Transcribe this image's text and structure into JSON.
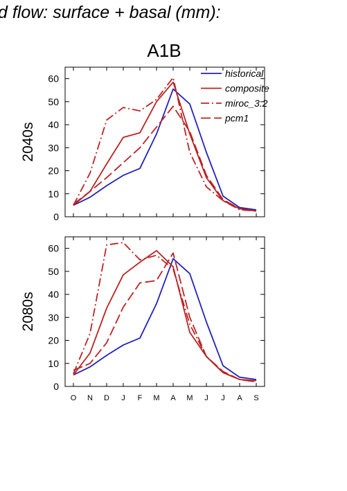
{
  "header": {
    "title": "d flow: surface + basal (mm):",
    "scenario": "A1B"
  },
  "chart_data": {
    "type": "line",
    "categories": [
      "O",
      "N",
      "D",
      "J",
      "F",
      "M",
      "A",
      "M",
      "J",
      "J",
      "A",
      "S"
    ],
    "ylim": [
      0,
      65
    ],
    "yticks": [
      0,
      10,
      20,
      30,
      40,
      50,
      60
    ],
    "legend_position": "top-right",
    "legend": [
      "historical",
      "composite",
      "miroc_3.2",
      "pcm1"
    ],
    "panels": [
      {
        "ylabel": "2040s",
        "series": [
          {
            "name": "historical",
            "color": "#2222bb",
            "dash": "solid",
            "values": [
              5,
              8.5,
              13.5,
              18,
              21,
              36,
              55.5,
              49,
              28,
              9,
              4,
              3
            ]
          },
          {
            "name": "composite",
            "color": "#bb2222",
            "dash": "solid",
            "values": [
              5,
              11,
              23,
              34.5,
              36.5,
              50,
              58.5,
              36,
              17,
              7,
              3.5,
              2.5
            ]
          },
          {
            "name": "miroc_3.2",
            "color": "#bb2222",
            "dash": "dashdot",
            "values": [
              5,
              19,
              42,
              47.5,
              46,
              51,
              60.5,
              28,
              13,
              7,
              3,
              2.5
            ]
          },
          {
            "name": "pcm1",
            "color": "#bb2222",
            "dash": "dash",
            "values": [
              5.5,
              11,
              17,
              23.5,
              30,
              39,
              48,
              37,
              18,
              7.5,
              3.5,
              2.5
            ]
          }
        ]
      },
      {
        "ylabel": "2080s",
        "series": [
          {
            "name": "historical",
            "color": "#2222bb",
            "dash": "solid",
            "values": [
              5,
              8.5,
              13.5,
              18,
              21,
              36,
              55.5,
              49,
              28,
              9,
              4,
              3
            ]
          },
          {
            "name": "composite",
            "color": "#bb2222",
            "dash": "solid",
            "values": [
              5,
              14.5,
              34,
              48.5,
              54,
              59,
              52,
              23.5,
              13,
              6,
              3,
              2.5
            ]
          },
          {
            "name": "miroc_3.2",
            "color": "#bb2222",
            "dash": "dashdot",
            "values": [
              5.5,
              23,
              61.5,
              62.5,
              55,
              57,
              51,
              27,
              13,
              6,
              3,
              2
            ]
          },
          {
            "name": "pcm1",
            "color": "#bb2222",
            "dash": "dash",
            "values": [
              7,
              10,
              19,
              34.5,
              45,
              46,
              58,
              30,
              13,
              6.5,
              3,
              2
            ]
          }
        ]
      }
    ]
  }
}
